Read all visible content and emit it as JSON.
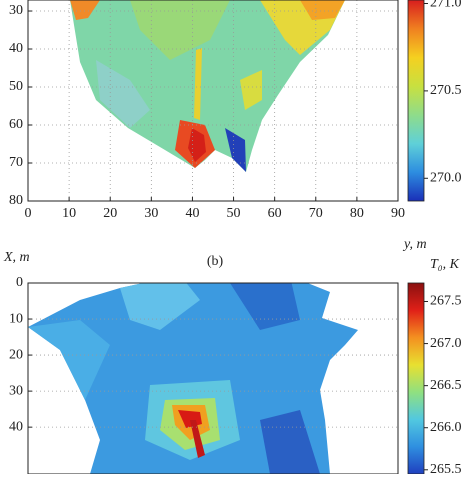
{
  "chart_data": [
    {
      "type": "heatmap",
      "xlabel": "y, m",
      "xlim": [
        0,
        90
      ],
      "xticks": [
        0,
        10,
        20,
        30,
        40,
        50,
        60,
        70,
        80,
        90
      ],
      "ylim": [
        27.1,
        80
      ],
      "yticks": [
        30,
        40,
        50,
        60,
        70,
        80
      ],
      "grid": true,
      "clim": [
        269.87,
        271.02
      ],
      "colorbar_ticks": [
        {
          "value": 271,
          "label": "271.0"
        },
        270.5,
        {
          "value": 270,
          "label": "270.0"
        }
      ],
      "colormap": [
        "#1a2fb8",
        "#2d8de0",
        "#5fd0d8",
        "#8fdc8a",
        "#c8e040",
        "#f5d020",
        "#f08020",
        "#d81e1e"
      ]
    },
    {
      "type": "heatmap",
      "ylabel": "X, m",
      "panel_label": "(b)",
      "colorbar_title": "T₀, K",
      "xlim": [
        0,
        90
      ],
      "ylim": [
        0,
        53
      ],
      "yticks": [
        0,
        10,
        20,
        30,
        40
      ],
      "grid": true,
      "clim": [
        265.45,
        267.72
      ],
      "colorbar_ticks": [
        267.5,
        {
          "value": 267,
          "label": "267.0"
        },
        266.5,
        {
          "value": 266,
          "label": "266.0"
        },
        265.5
      ],
      "colormap": [
        "#1f3fbf",
        "#2f8fe0",
        "#52c8e0",
        "#90e080",
        "#e8e030",
        "#f49020",
        "#e02018",
        "#8a1010"
      ]
    }
  ]
}
